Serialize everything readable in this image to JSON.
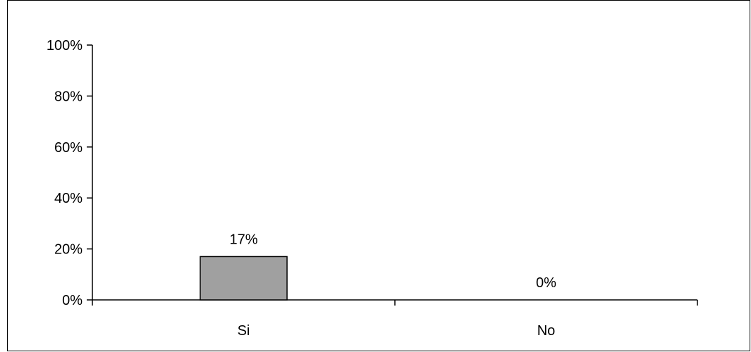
{
  "chart_data": {
    "type": "bar",
    "categories": [
      "Si",
      "No"
    ],
    "values": [
      17,
      0
    ],
    "data_labels": [
      "17%",
      "0%"
    ],
    "yticks": [
      0,
      20,
      40,
      60,
      80,
      100
    ],
    "ytick_labels": [
      "0%",
      "20%",
      "40%",
      "60%",
      "80%",
      "100%"
    ],
    "ylim": [
      0,
      100
    ],
    "title": "",
    "xlabel": "",
    "ylabel": "",
    "grid": false,
    "legend": "none",
    "colors": {
      "bar_fill": "#a0a0a0",
      "bar_stroke": "#000000",
      "axis": "#000000"
    }
  }
}
